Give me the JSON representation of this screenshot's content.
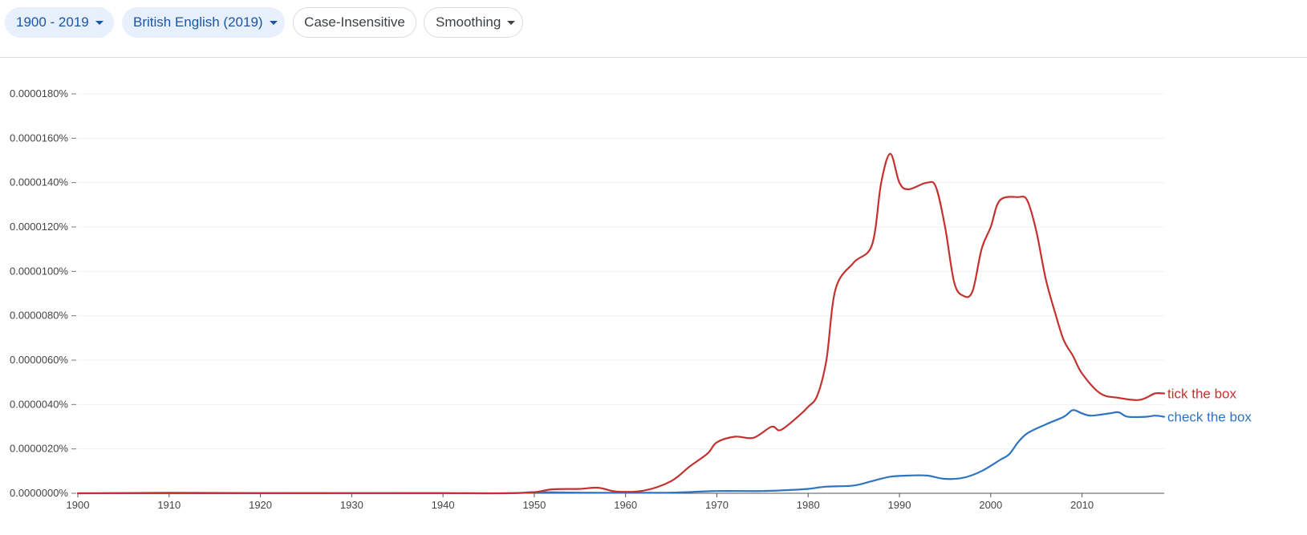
{
  "toolbar": {
    "year_range": "1900 - 2019",
    "corpus": "British English (2019)",
    "case_label": "Case-Insensitive",
    "smoothing_label": "Smoothing"
  },
  "chart_data": {
    "type": "line",
    "title": "",
    "xlabel": "",
    "ylabel": "",
    "xlim": [
      1900,
      2019
    ],
    "ylim": [
      0,
      1.9e-05
    ],
    "x_ticks": [
      1900,
      1910,
      1920,
      1930,
      1940,
      1950,
      1960,
      1970,
      1980,
      1990,
      2000,
      2010
    ],
    "y_ticks": [
      "0.0000000%",
      "0.0000020%",
      "0.0000040%",
      "0.0000060%",
      "0.0000080%",
      "0.0000100%",
      "0.0000120%",
      "0.0000140%",
      "0.0000160%",
      "0.0000180%"
    ],
    "y_tick_values": [
      0,
      2e-06,
      4e-06,
      6e-06,
      8e-06,
      1e-05,
      1.2e-05,
      1.4e-05,
      1.6e-05,
      1.8e-05
    ],
    "grid": true,
    "legend": "right-end-labels",
    "series": [
      {
        "name": "tick the box",
        "color": "#c5312f",
        "points": [
          [
            1900,
            0.0
          ],
          [
            1910,
            2e-08
          ],
          [
            1920,
            1e-08
          ],
          [
            1930,
            1e-08
          ],
          [
            1940,
            1e-08
          ],
          [
            1947,
            0.0
          ],
          [
            1950,
            5e-08
          ],
          [
            1952,
            1.8e-07
          ],
          [
            1955,
            2e-07
          ],
          [
            1957,
            2.5e-07
          ],
          [
            1959,
            8e-08
          ],
          [
            1962,
            1.2e-07
          ],
          [
            1965,
            5.5e-07
          ],
          [
            1967,
            1.2e-06
          ],
          [
            1969,
            1.8e-06
          ],
          [
            1970,
            2.3e-06
          ],
          [
            1972,
            2.55e-06
          ],
          [
            1974,
            2.5e-06
          ],
          [
            1976,
            3e-06
          ],
          [
            1977,
            2.85e-06
          ],
          [
            1979,
            3.5e-06
          ],
          [
            1980,
            3.9e-06
          ],
          [
            1981,
            4.4e-06
          ],
          [
            1982,
            6e-06
          ],
          [
            1983,
            9.2e-06
          ],
          [
            1985,
            1.04e-05
          ],
          [
            1987,
            1.12e-05
          ],
          [
            1988,
            1.4e-05
          ],
          [
            1989,
            1.53e-05
          ],
          [
            1990,
            1.4e-05
          ],
          [
            1991,
            1.37e-05
          ],
          [
            1993,
            1.4e-05
          ],
          [
            1994,
            1.38e-05
          ],
          [
            1995,
            1.2e-05
          ],
          [
            1996,
            9.5e-06
          ],
          [
            1997,
            8.9e-06
          ],
          [
            1998,
            9.1e-06
          ],
          [
            1999,
            1.1e-05
          ],
          [
            2000,
            1.2e-05
          ],
          [
            2001,
            1.32e-05
          ],
          [
            2003,
            1.335e-05
          ],
          [
            2004,
            1.32e-05
          ],
          [
            2005,
            1.18e-05
          ],
          [
            2006,
            9.7e-06
          ],
          [
            2007,
            8.2e-06
          ],
          [
            2008,
            6.9e-06
          ],
          [
            2009,
            6.2e-06
          ],
          [
            2010,
            5.4e-06
          ],
          [
            2012,
            4.5e-06
          ],
          [
            2014,
            4.3e-06
          ],
          [
            2016,
            4.2e-06
          ],
          [
            2017,
            4.3e-06
          ],
          [
            2018,
            4.5e-06
          ],
          [
            2019,
            4.5e-06
          ]
        ]
      },
      {
        "name": "check the box",
        "color": "#2f74c0",
        "points": [
          [
            1900,
            0.0
          ],
          [
            1920,
            0.0
          ],
          [
            1945,
            0.0
          ],
          [
            1950,
            5e-08
          ],
          [
            1955,
            3e-08
          ],
          [
            1960,
            2e-08
          ],
          [
            1965,
            3e-08
          ],
          [
            1970,
            1e-07
          ],
          [
            1975,
            1e-07
          ],
          [
            1978,
            1.5e-07
          ],
          [
            1980,
            2e-07
          ],
          [
            1982,
            3e-07
          ],
          [
            1985,
            3.5e-07
          ],
          [
            1987,
            5.5e-07
          ],
          [
            1989,
            7.5e-07
          ],
          [
            1991,
            8e-07
          ],
          [
            1993,
            8e-07
          ],
          [
            1995,
            6.5e-07
          ],
          [
            1997,
            7e-07
          ],
          [
            1999,
            1e-06
          ],
          [
            2001,
            1.5e-06
          ],
          [
            2002,
            1.75e-06
          ],
          [
            2003,
            2.3e-06
          ],
          [
            2004,
            2.7e-06
          ],
          [
            2006,
            3.1e-06
          ],
          [
            2008,
            3.45e-06
          ],
          [
            2009,
            3.75e-06
          ],
          [
            2010,
            3.6e-06
          ],
          [
            2011,
            3.5e-06
          ],
          [
            2013,
            3.6e-06
          ],
          [
            2014,
            3.65e-06
          ],
          [
            2015,
            3.45e-06
          ],
          [
            2017,
            3.45e-06
          ],
          [
            2018,
            3.5e-06
          ],
          [
            2019,
            3.45e-06
          ]
        ]
      }
    ]
  }
}
